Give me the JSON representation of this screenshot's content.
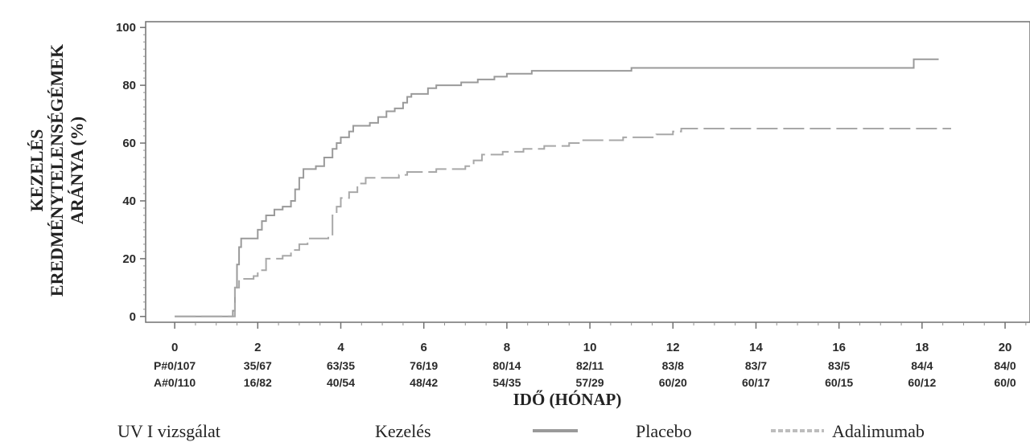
{
  "colors": {
    "placebo": "#9a9a9a",
    "adalimumab": "#a8a8a8",
    "axis": "#707070",
    "text": "#222222"
  },
  "chart_data": {
    "type": "line",
    "title": "",
    "xlabel": "IDŐ (HÓNAP)",
    "ylabel_lines": [
      "KEZELÉS",
      "EREDMÉNYTELENSÉGÉMEK",
      "ARÁNYA (%)"
    ],
    "xlim": [
      -0.7,
      20.6
    ],
    "ylim": [
      -2,
      102
    ],
    "x_ticks": [
      0,
      2,
      4,
      6,
      8,
      10,
      12,
      14,
      16,
      18,
      20
    ],
    "x_tick_labels": [
      "0",
      "2",
      "4",
      "6",
      "8",
      "10",
      "12",
      "14",
      "16",
      "18",
      "20"
    ],
    "y_ticks": [
      0,
      20,
      40,
      60,
      80,
      100
    ],
    "y_tick_labels": [
      "0",
      "20",
      "40",
      "60",
      "80",
      "100"
    ],
    "grid": false,
    "risk_table": {
      "rows": [
        {
          "label": "P#",
          "values": [
            "P#0/107",
            "35/67",
            "63/35",
            "76/19",
            "80/14",
            "82/11",
            "83/8",
            "83/7",
            "83/5",
            "84/4",
            "84/0"
          ]
        },
        {
          "label": "A#",
          "values": [
            "A#0/110",
            "16/82",
            "40/54",
            "48/42",
            "54/35",
            "57/29",
            "60/20",
            "60/17",
            "60/15",
            "60/12",
            "60/0"
          ]
        }
      ]
    },
    "series": [
      {
        "name": "Placebo",
        "style": "solid",
        "points": [
          [
            0,
            0
          ],
          [
            1.35,
            0
          ],
          [
            1.4,
            2
          ],
          [
            1.45,
            10
          ],
          [
            1.5,
            18
          ],
          [
            1.55,
            24
          ],
          [
            1.6,
            27
          ],
          [
            1.9,
            27
          ],
          [
            2.0,
            30
          ],
          [
            2.1,
            33
          ],
          [
            2.2,
            35
          ],
          [
            2.4,
            37
          ],
          [
            2.6,
            38
          ],
          [
            2.8,
            40
          ],
          [
            2.9,
            44
          ],
          [
            3.0,
            48
          ],
          [
            3.1,
            51
          ],
          [
            3.4,
            52
          ],
          [
            3.6,
            55
          ],
          [
            3.8,
            58
          ],
          [
            3.9,
            60
          ],
          [
            4.0,
            62
          ],
          [
            4.2,
            64
          ],
          [
            4.3,
            66
          ],
          [
            4.7,
            67
          ],
          [
            4.9,
            69
          ],
          [
            5.1,
            71
          ],
          [
            5.3,
            72
          ],
          [
            5.5,
            74
          ],
          [
            5.6,
            76
          ],
          [
            5.7,
            77
          ],
          [
            6.1,
            79
          ],
          [
            6.3,
            80
          ],
          [
            6.9,
            81
          ],
          [
            7.3,
            82
          ],
          [
            7.7,
            83
          ],
          [
            8.0,
            84
          ],
          [
            8.6,
            85
          ],
          [
            10.4,
            85
          ],
          [
            11.0,
            86
          ],
          [
            17.7,
            86
          ],
          [
            17.8,
            89
          ],
          [
            18.4,
            89
          ]
        ]
      },
      {
        "name": "Adalimumab",
        "style": "dashed",
        "points": [
          [
            0,
            0
          ],
          [
            1.35,
            0
          ],
          [
            1.45,
            10
          ],
          [
            1.55,
            13
          ],
          [
            1.9,
            14
          ],
          [
            2.0,
            16
          ],
          [
            2.2,
            20
          ],
          [
            2.6,
            21
          ],
          [
            2.8,
            23
          ],
          [
            3.0,
            25
          ],
          [
            3.2,
            27
          ],
          [
            3.7,
            28
          ],
          [
            3.8,
            35
          ],
          [
            3.9,
            38
          ],
          [
            4.0,
            41
          ],
          [
            4.2,
            43
          ],
          [
            4.4,
            46
          ],
          [
            4.6,
            48
          ],
          [
            5.4,
            49
          ],
          [
            5.6,
            50
          ],
          [
            6.3,
            51
          ],
          [
            7.0,
            52
          ],
          [
            7.2,
            54
          ],
          [
            7.4,
            56
          ],
          [
            7.9,
            57
          ],
          [
            8.4,
            58
          ],
          [
            8.9,
            59
          ],
          [
            9.5,
            60
          ],
          [
            9.8,
            61
          ],
          [
            10.8,
            62
          ],
          [
            11.6,
            63
          ],
          [
            12.0,
            64
          ],
          [
            12.2,
            65
          ],
          [
            18.7,
            65
          ]
        ]
      }
    ]
  },
  "legend": {
    "study": "UV I vizsgálat",
    "header": "Kezelés",
    "placebo": "Placebo",
    "adalimumab": "Adalimumab"
  }
}
